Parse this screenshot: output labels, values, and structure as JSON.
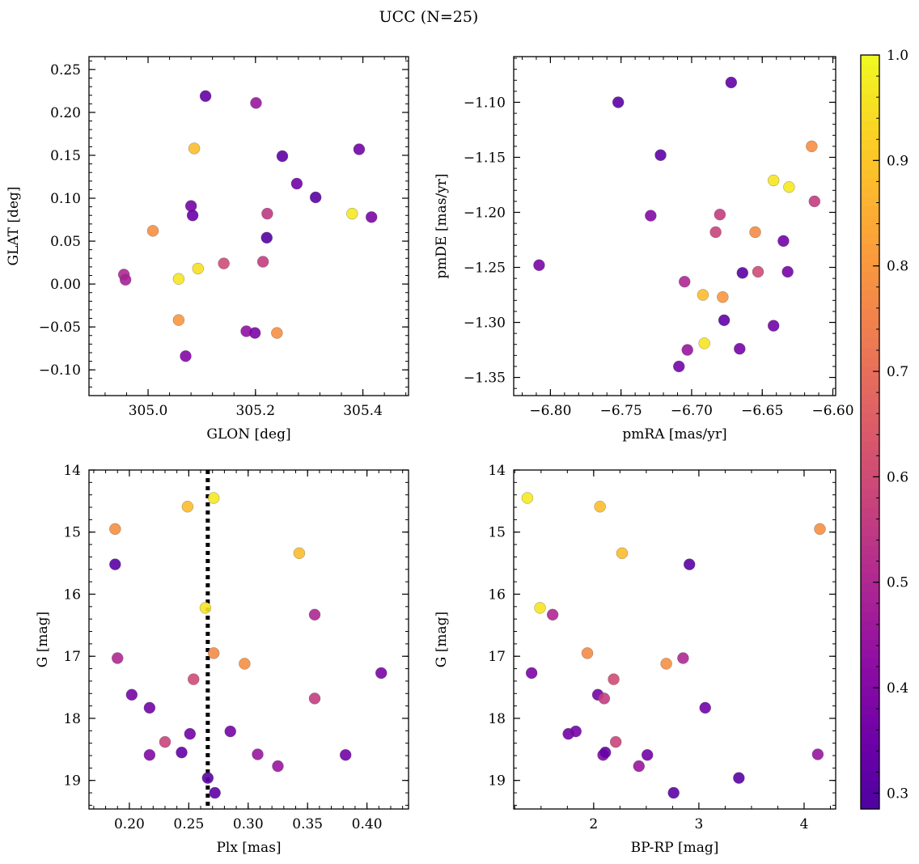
{
  "title": "UCC (N=25)",
  "colors": {
    "colormap": "plasma",
    "point_edge": "#555555",
    "threshold_line": "#000000"
  },
  "chart_data": [
    {
      "type": "scatter",
      "id": "glon-glat",
      "xlabel": "GLON [deg]",
      "ylabel": "GLAT [deg]",
      "xlim": [
        304.89,
        305.485
      ],
      "ylim": [
        -0.13,
        0.265
      ],
      "xticks": [
        305.0,
        305.2,
        305.4
      ],
      "xtick_labels": [
        "305.0",
        "305.2",
        "305.4"
      ],
      "yticks": [
        -0.1,
        -0.05,
        0.0,
        0.05,
        0.1,
        0.15,
        0.2,
        0.25
      ],
      "ytick_labels": [
        "−0.10",
        "−0.05",
        "0.00",
        "0.05",
        "0.10",
        "0.15",
        "0.20",
        "0.25"
      ],
      "y_inverted": false,
      "points": [
        {
          "x": 305.107,
          "y": 0.219,
          "c": 0.33
        },
        {
          "x": 305.201,
          "y": 0.211,
          "c": 0.45
        },
        {
          "x": 305.086,
          "y": 0.158,
          "c": 0.88
        },
        {
          "x": 305.25,
          "y": 0.149,
          "c": 0.32
        },
        {
          "x": 305.393,
          "y": 0.157,
          "c": 0.36
        },
        {
          "x": 305.277,
          "y": 0.117,
          "c": 0.36
        },
        {
          "x": 305.312,
          "y": 0.101,
          "c": 0.31
        },
        {
          "x": 305.08,
          "y": 0.091,
          "c": 0.37
        },
        {
          "x": 305.083,
          "y": 0.08,
          "c": 0.34
        },
        {
          "x": 305.222,
          "y": 0.082,
          "c": 0.55
        },
        {
          "x": 305.38,
          "y": 0.082,
          "c": 0.97
        },
        {
          "x": 305.416,
          "y": 0.078,
          "c": 0.38
        },
        {
          "x": 305.009,
          "y": 0.062,
          "c": 0.78
        },
        {
          "x": 305.221,
          "y": 0.054,
          "c": 0.3
        },
        {
          "x": 305.141,
          "y": 0.024,
          "c": 0.6
        },
        {
          "x": 305.214,
          "y": 0.026,
          "c": 0.56
        },
        {
          "x": 305.093,
          "y": 0.018,
          "c": 0.95
        },
        {
          "x": 304.955,
          "y": 0.011,
          "c": 0.5
        },
        {
          "x": 304.958,
          "y": 0.005,
          "c": 0.48
        },
        {
          "x": 305.057,
          "y": 0.006,
          "c": 0.96
        },
        {
          "x": 305.057,
          "y": -0.042,
          "c": 0.8
        },
        {
          "x": 305.183,
          "y": -0.055,
          "c": 0.43
        },
        {
          "x": 305.199,
          "y": -0.057,
          "c": 0.38
        },
        {
          "x": 305.24,
          "y": -0.057,
          "c": 0.78
        },
        {
          "x": 305.07,
          "y": -0.084,
          "c": 0.4
        }
      ]
    },
    {
      "type": "scatter",
      "id": "pmra-pmde",
      "xlabel": "pmRA [mas/yr]",
      "ylabel": "pmDE [mas/yr]",
      "xlim": [
        -6.826,
        -6.598
      ],
      "ylim": [
        -1.3665,
        -1.0585
      ],
      "xticks": [
        -6.8,
        -6.75,
        -6.7,
        -6.65,
        -6.6
      ],
      "xtick_labels": [
        "−6.80",
        "−6.75",
        "−6.70",
        "−6.65",
        "−6.60"
      ],
      "yticks": [
        -1.35,
        -1.3,
        -1.25,
        -1.2,
        -1.15,
        -1.1
      ],
      "ytick_labels": [
        "−1.35",
        "−1.30",
        "−1.25",
        "−1.20",
        "−1.15",
        "−1.10"
      ],
      "y_inverted": false,
      "points": [
        {
          "x": -6.672,
          "y": -1.082,
          "c": 0.33
        },
        {
          "x": -6.752,
          "y": -1.1,
          "c": 0.31
        },
        {
          "x": -6.722,
          "y": -1.148,
          "c": 0.32
        },
        {
          "x": -6.615,
          "y": -1.14,
          "c": 0.78
        },
        {
          "x": -6.642,
          "y": -1.171,
          "c": 0.96
        },
        {
          "x": -6.631,
          "y": -1.177,
          "c": 0.97
        },
        {
          "x": -6.613,
          "y": -1.19,
          "c": 0.56
        },
        {
          "x": -6.729,
          "y": -1.203,
          "c": 0.4
        },
        {
          "x": -6.68,
          "y": -1.202,
          "c": 0.56
        },
        {
          "x": -6.683,
          "y": -1.218,
          "c": 0.58
        },
        {
          "x": -6.655,
          "y": -1.218,
          "c": 0.77
        },
        {
          "x": -6.635,
          "y": -1.226,
          "c": 0.36
        },
        {
          "x": -6.808,
          "y": -1.248,
          "c": 0.38
        },
        {
          "x": -6.664,
          "y": -1.255,
          "c": 0.31
        },
        {
          "x": -6.653,
          "y": -1.254,
          "c": 0.6
        },
        {
          "x": -6.632,
          "y": -1.254,
          "c": 0.37
        },
        {
          "x": -6.705,
          "y": -1.263,
          "c": 0.5
        },
        {
          "x": -6.692,
          "y": -1.275,
          "c": 0.88
        },
        {
          "x": -6.678,
          "y": -1.277,
          "c": 0.8
        },
        {
          "x": -6.677,
          "y": -1.298,
          "c": 0.33
        },
        {
          "x": -6.642,
          "y": -1.303,
          "c": 0.36
        },
        {
          "x": -6.691,
          "y": -1.319,
          "c": 0.96
        },
        {
          "x": -6.666,
          "y": -1.324,
          "c": 0.37
        },
        {
          "x": -6.703,
          "y": -1.325,
          "c": 0.45
        },
        {
          "x": -6.709,
          "y": -1.34,
          "c": 0.37
        }
      ]
    },
    {
      "type": "scatter",
      "id": "plx-g",
      "xlabel": "Plx [mas]",
      "ylabel": "G [mag]",
      "xlim": [
        0.166,
        0.435
      ],
      "ylim": [
        14.0,
        19.46
      ],
      "xticks": [
        0.2,
        0.25,
        0.3,
        0.35,
        0.4
      ],
      "xtick_labels": [
        "0.20",
        "0.25",
        "0.30",
        "0.35",
        "0.40"
      ],
      "yticks": [
        14,
        15,
        16,
        17,
        18,
        19
      ],
      "ytick_labels": [
        "14",
        "15",
        "16",
        "17",
        "18",
        "19"
      ],
      "y_inverted": true,
      "vline_x": 0.266,
      "points": [
        {
          "x": 0.271,
          "y": 14.45,
          "c": 0.97
        },
        {
          "x": 0.249,
          "y": 14.59,
          "c": 0.88
        },
        {
          "x": 0.188,
          "y": 14.95,
          "c": 0.78
        },
        {
          "x": 0.343,
          "y": 15.34,
          "c": 0.88
        },
        {
          "x": 0.188,
          "y": 15.52,
          "c": 0.31
        },
        {
          "x": 0.264,
          "y": 16.22,
          "c": 0.96
        },
        {
          "x": 0.356,
          "y": 16.33,
          "c": 0.5
        },
        {
          "x": 0.271,
          "y": 16.95,
          "c": 0.77
        },
        {
          "x": 0.297,
          "y": 17.12,
          "c": 0.78
        },
        {
          "x": 0.19,
          "y": 17.03,
          "c": 0.5
        },
        {
          "x": 0.412,
          "y": 17.27,
          "c": 0.38
        },
        {
          "x": 0.254,
          "y": 17.37,
          "c": 0.6
        },
        {
          "x": 0.202,
          "y": 17.62,
          "c": 0.37
        },
        {
          "x": 0.356,
          "y": 17.68,
          "c": 0.56
        },
        {
          "x": 0.217,
          "y": 17.83,
          "c": 0.36
        },
        {
          "x": 0.251,
          "y": 18.25,
          "c": 0.36
        },
        {
          "x": 0.285,
          "y": 18.21,
          "c": 0.37
        },
        {
          "x": 0.23,
          "y": 18.38,
          "c": 0.58
        },
        {
          "x": 0.217,
          "y": 18.59,
          "c": 0.4
        },
        {
          "x": 0.244,
          "y": 18.55,
          "c": 0.33
        },
        {
          "x": 0.308,
          "y": 18.58,
          "c": 0.45
        },
        {
          "x": 0.325,
          "y": 18.77,
          "c": 0.45
        },
        {
          "x": 0.382,
          "y": 18.59,
          "c": 0.36
        },
        {
          "x": 0.266,
          "y": 18.96,
          "c": 0.31
        },
        {
          "x": 0.272,
          "y": 19.2,
          "c": 0.32
        }
      ]
    },
    {
      "type": "scatter",
      "id": "bprp-g",
      "xlabel": "BP-RP [mag]",
      "ylabel": "G [mag]",
      "xlim": [
        1.24,
        4.3
      ],
      "ylim": [
        14.0,
        19.46
      ],
      "xticks": [
        2,
        3,
        4
      ],
      "xtick_labels": [
        "2",
        "3",
        "4"
      ],
      "yticks": [
        14,
        15,
        16,
        17,
        18,
        19
      ],
      "ytick_labels": [
        "14",
        "15",
        "16",
        "17",
        "18",
        "19"
      ],
      "y_inverted": true,
      "points": [
        {
          "x": 1.37,
          "y": 14.45,
          "c": 0.97
        },
        {
          "x": 2.06,
          "y": 14.59,
          "c": 0.88
        },
        {
          "x": 4.15,
          "y": 14.95,
          "c": 0.78
        },
        {
          "x": 2.27,
          "y": 15.34,
          "c": 0.88
        },
        {
          "x": 2.91,
          "y": 15.52,
          "c": 0.31
        },
        {
          "x": 1.49,
          "y": 16.22,
          "c": 0.96
        },
        {
          "x": 1.61,
          "y": 16.33,
          "c": 0.5
        },
        {
          "x": 1.94,
          "y": 16.95,
          "c": 0.77
        },
        {
          "x": 2.69,
          "y": 17.12,
          "c": 0.78
        },
        {
          "x": 2.85,
          "y": 17.03,
          "c": 0.5
        },
        {
          "x": 1.41,
          "y": 17.27,
          "c": 0.38
        },
        {
          "x": 2.19,
          "y": 17.37,
          "c": 0.6
        },
        {
          "x": 2.04,
          "y": 17.62,
          "c": 0.37
        },
        {
          "x": 2.1,
          "y": 17.68,
          "c": 0.56
        },
        {
          "x": 3.06,
          "y": 17.83,
          "c": 0.36
        },
        {
          "x": 1.76,
          "y": 18.25,
          "c": 0.36
        },
        {
          "x": 1.83,
          "y": 18.21,
          "c": 0.37
        },
        {
          "x": 2.21,
          "y": 18.38,
          "c": 0.58
        },
        {
          "x": 2.09,
          "y": 18.59,
          "c": 0.4
        },
        {
          "x": 2.11,
          "y": 18.55,
          "c": 0.33
        },
        {
          "x": 2.51,
          "y": 18.59,
          "c": 0.36
        },
        {
          "x": 2.43,
          "y": 18.77,
          "c": 0.45
        },
        {
          "x": 4.13,
          "y": 18.58,
          "c": 0.45
        },
        {
          "x": 3.38,
          "y": 18.96,
          "c": 0.31
        },
        {
          "x": 2.76,
          "y": 19.2,
          "c": 0.32
        }
      ]
    }
  ],
  "colorbar": {
    "colormap": "plasma",
    "min": 0.285,
    "max": 1.0,
    "ticks": [
      0.3,
      0.4,
      0.5,
      0.6,
      0.7,
      0.8,
      0.9,
      1.0
    ],
    "tick_labels": [
      "0.3",
      "0.4",
      "0.5",
      "0.6",
      "0.7",
      "0.8",
      "0.9",
      "1.0"
    ]
  }
}
